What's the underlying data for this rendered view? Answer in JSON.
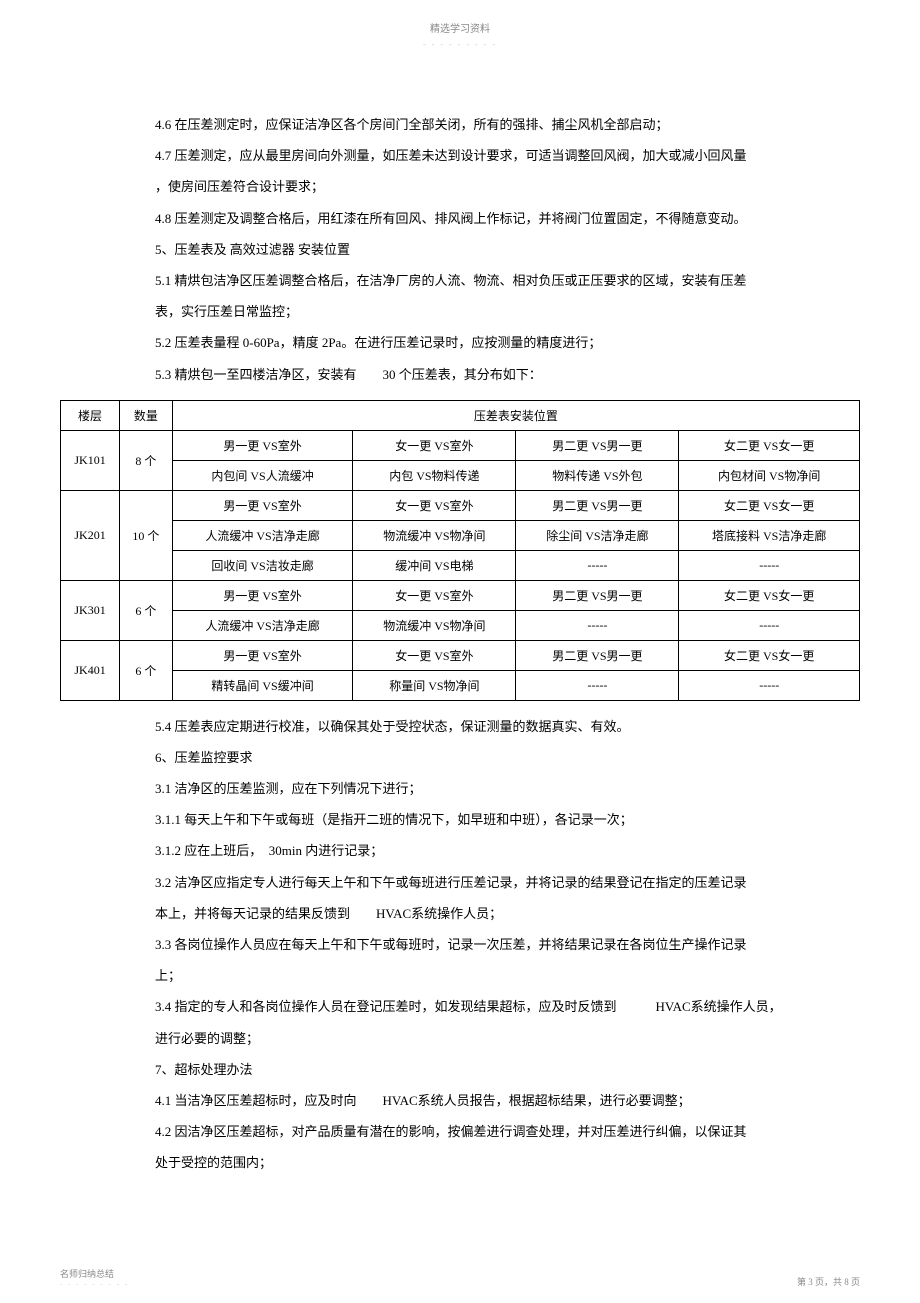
{
  "header": {
    "title": "精选学习资料",
    "subtitle": "- - - - - - - - -"
  },
  "paragraphs": {
    "p1": "4.6 在压差测定时，应保证洁净区各个房间门全部关闭，所有的强排、捕尘风机全部启动；",
    "p2": "4.7 压差测定，应从最里房间向外测量，如压差未达到设计要求，可适当调整回风阀，加大或减小回风量",
    "p3": "，使房间压差符合设计要求；",
    "p4": "4.8 压差测定及调整合格后，用红漆在所有回风、排风阀上作标记，并将阀门位置固定，不得随意变动。",
    "p5": "5、压差表及 高效过滤器 安装位置",
    "p6": "5.1 精烘包洁净区压差调整合格后，在洁净厂房的人流、物流、相对负压或正压要求的区域，安装有压差",
    "p7": "表，实行压差日常监控；",
    "p8": "5.2 压差表量程 0-60Pa，精度 2Pa。在进行压差记录时，应按测量的精度进行；",
    "p9": "5.3 精烘包一至四楼洁净区，安装有　　30 个压差表，其分布如下：",
    "p10": "5.4 压差表应定期进行校准，以确保其处于受控状态，保证测量的数据真实、有效。",
    "p11": "6、压差监控要求",
    "p12": "3.1 洁净区的压差监测，应在下列情况下进行；",
    "p13": "3.1.1 每天上午和下午或每班（是指开二班的情况下，如早班和中班），各记录一次；",
    "p14": "3.1.2 应在上班后，　30min 内进行记录；",
    "p15": "3.2 洁净区应指定专人进行每天上午和下午或每班进行压差记录，并将记录的结果登记在指定的压差记录",
    "p16": "本上，并将每天记录的结果反馈到　　HVAC系统操作人员；",
    "p17": "3.3 各岗位操作人员应在每天上午和下午或每班时，记录一次压差，并将结果记录在各岗位生产操作记录",
    "p18": "上；",
    "p19": "3.4 指定的专人和各岗位操作人员在登记压差时，如发现结果超标，应及时反馈到　　　HVAC系统操作人员，",
    "p20": "进行必要的调整；",
    "p21": "7、超标处理办法",
    "p22": "4.1 当洁净区压差超标时，应及时向　　HVAC系统人员报告，根据超标结果，进行必要调整；",
    "p23": "4.2 因洁净区压差超标，对产品质量有潜在的影响，按偏差进行调查处理，并对压差进行纠偏，以保证其",
    "p24": "处于受控的范围内；"
  },
  "table": {
    "headers": {
      "col1": "楼层",
      "col2": "数量",
      "col3": "压差表安装位置"
    },
    "rows": [
      {
        "floor": "JK101",
        "qty": "8 个",
        "cells": [
          [
            "男一更 VS室外",
            "女一更 VS室外",
            "男二更 VS男一更",
            "女二更 VS女一更"
          ],
          [
            "内包间 VS人流缓冲",
            "内包 VS物料传递",
            "物料传递 VS外包",
            "内包材间 VS物净间"
          ]
        ]
      },
      {
        "floor": "JK201",
        "qty": "10 个",
        "cells": [
          [
            "男一更 VS室外",
            "女一更 VS室外",
            "男二更 VS男一更",
            "女二更 VS女一更"
          ],
          [
            "人流缓冲 VS洁净走廊",
            "物流缓冲 VS物净间",
            "除尘间 VS洁净走廊",
            "塔底接料 VS洁净走廊"
          ],
          [
            "回收间 VS洁妆走廊",
            "缓冲间 VS电梯",
            "-----",
            "-----"
          ]
        ]
      },
      {
        "floor": "JK301",
        "qty": "6 个",
        "cells": [
          [
            "男一更 VS室外",
            "女一更 VS室外",
            "男二更 VS男一更",
            "女二更 VS女一更"
          ],
          [
            "人流缓冲 VS洁净走廊",
            "物流缓冲 VS物净间",
            "-----",
            "-----"
          ]
        ]
      },
      {
        "floor": "JK401",
        "qty": "6 个",
        "cells": [
          [
            "男一更 VS室外",
            "女一更 VS室外",
            "男二更 VS男一更",
            "女二更 VS女一更"
          ],
          [
            "精转晶间 VS缓冲间",
            "称量间 VS物净间",
            "-----",
            "-----"
          ]
        ]
      }
    ]
  },
  "footer": {
    "left": "名师归纳总结",
    "leftSub": "- - - - - - - - -",
    "right": "第 3 页，共 8 页"
  }
}
